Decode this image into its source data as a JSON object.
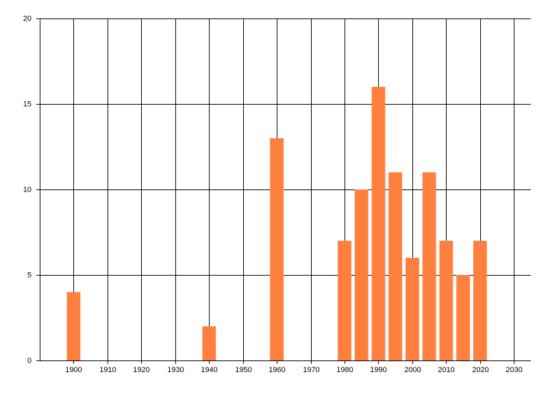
{
  "chart_data": {
    "type": "bar",
    "x": [
      1900,
      1940,
      1960,
      1980,
      1985,
      1990,
      1995,
      2000,
      2005,
      2010,
      2015,
      2020
    ],
    "values": [
      4,
      2,
      13,
      7,
      10,
      16,
      11,
      6,
      11,
      7,
      5,
      7
    ],
    "color": "#ff7f3f",
    "xlim": [
      1890,
      2035
    ],
    "xticks": [
      1900,
      1910,
      1920,
      1930,
      1940,
      1950,
      1960,
      1970,
      1980,
      1990,
      2000,
      2010,
      2020,
      2030
    ],
    "ylim": [
      0,
      20
    ],
    "yticks": [
      0,
      5,
      10,
      15,
      20
    ],
    "grid": true
  }
}
